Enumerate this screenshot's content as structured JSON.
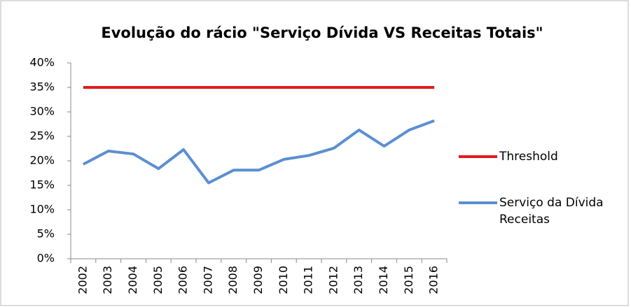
{
  "chart_data": {
    "type": "line",
    "title": "Evolução do rácio \"Serviço Dívida VS Receitas Totais\"",
    "categories": [
      "2002",
      "2003",
      "2004",
      "2005",
      "2006",
      "2007",
      "2008",
      "2009",
      "2010",
      "2011",
      "2012",
      "2013",
      "2014",
      "2015",
      "2016"
    ],
    "series": [
      {
        "name": "Threshold",
        "color": "#e31a1c",
        "values": [
          35,
          35,
          35,
          35,
          35,
          35,
          35,
          35,
          35,
          35,
          35,
          35,
          35,
          35,
          35
        ]
      },
      {
        "name": "Serviço da Dívida Receitas",
        "color": "#5b8fd1",
        "values": [
          19.3,
          22,
          21.4,
          18.4,
          22.3,
          15.5,
          18.1,
          18.1,
          20.3,
          21.1,
          22.6,
          26.3,
          23,
          26.3,
          28.2
        ]
      }
    ],
    "ylim": [
      0,
      40
    ],
    "yticks": [
      {
        "value": 0,
        "label": "0%"
      },
      {
        "value": 5,
        "label": "5%"
      },
      {
        "value": 10,
        "label": "10%"
      },
      {
        "value": 15,
        "label": "15%"
      },
      {
        "value": 20,
        "label": "20%"
      },
      {
        "value": 25,
        "label": "25%"
      },
      {
        "value": 30,
        "label": "30%"
      },
      {
        "value": 35,
        "label": "35%"
      },
      {
        "value": 40,
        "label": "40%"
      }
    ],
    "legend": "right"
  }
}
